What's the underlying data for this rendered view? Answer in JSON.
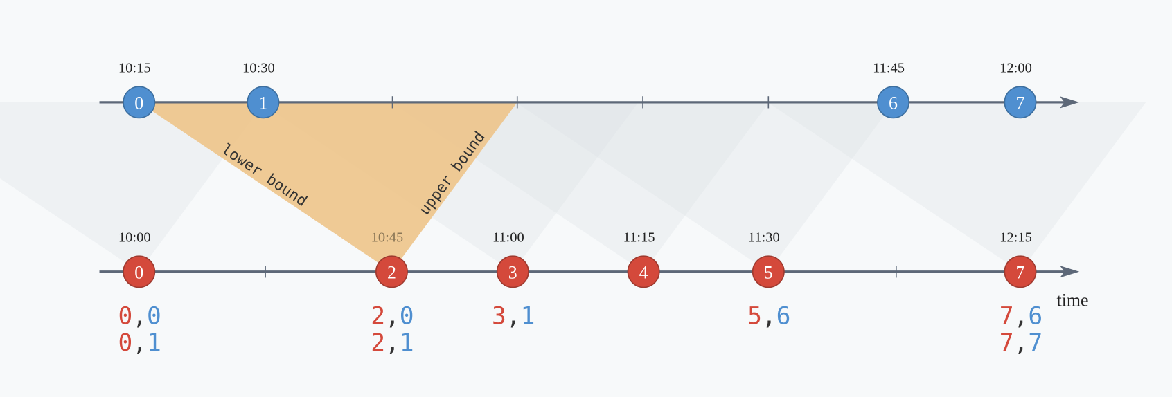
{
  "top_stream": {
    "nodes": [
      {
        "label": "0",
        "time": "10:15"
      },
      {
        "label": "1",
        "time": "10:30"
      },
      {
        "label": "6",
        "time": "11:45"
      },
      {
        "label": "7",
        "time": "12:00"
      }
    ]
  },
  "bottom_stream": {
    "nodes": [
      {
        "label": "0",
        "time": "10:00"
      },
      {
        "label": "2",
        "time": "10:45"
      },
      {
        "label": "3",
        "time": "11:00"
      },
      {
        "label": "4",
        "time": "11:15"
      },
      {
        "label": "5",
        "time": "11:30"
      },
      {
        "label": "7",
        "time": "12:15"
      }
    ]
  },
  "bounds": {
    "lower": "lower bound",
    "upper": "upper bound"
  },
  "axis_label": "time",
  "pairs": [
    [
      [
        "0",
        ",",
        "0"
      ],
      [
        "0",
        ",",
        "1"
      ]
    ],
    [
      [
        "2",
        ",",
        "0"
      ],
      [
        "2",
        ",",
        "1"
      ]
    ],
    [
      [
        "3",
        ",",
        "1"
      ]
    ],
    [
      [
        "5",
        ",",
        "6"
      ]
    ],
    [
      [
        "7",
        ",",
        "6"
      ],
      [
        "7",
        ",",
        "7"
      ]
    ]
  ]
}
